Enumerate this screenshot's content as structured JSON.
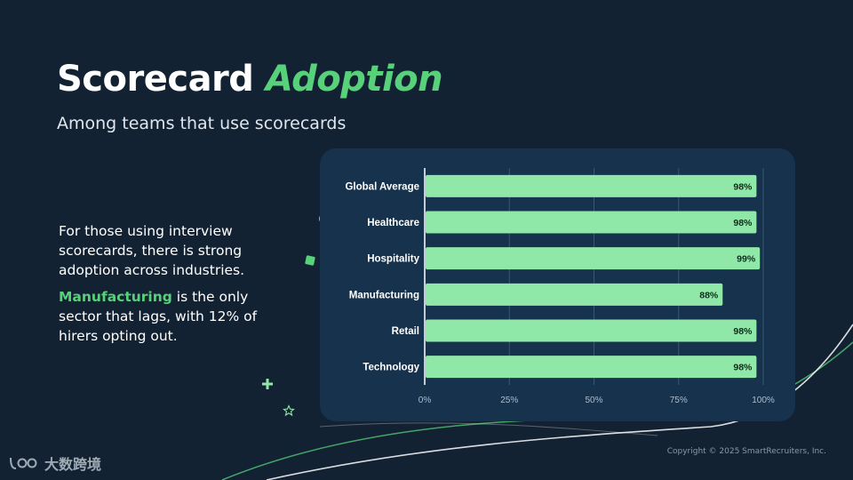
{
  "title": {
    "main": "Scorecard",
    "accent": "Adoption"
  },
  "subtitle": "Among teams that use scorecards",
  "body": {
    "paragraph1": "For those using interview scorecards, there is strong adoption across industries.",
    "paragraph2_highlight": "Manufacturing",
    "paragraph2_rest": " is the only sector that lags, with 12% of hirers opting out."
  },
  "footer": {
    "copyright": "Copyright © 2025 SmartRecruiters, Inc."
  },
  "watermark": {
    "text": "大数跨境"
  },
  "colors": {
    "background": "#132233",
    "card": "#16324d",
    "bar": "#8fe8a8",
    "accent": "#57d17a"
  },
  "chart_data": {
    "type": "bar",
    "orientation": "horizontal",
    "categories": [
      "Global Average",
      "Healthcare",
      "Hospitality",
      "Manufacturing",
      "Retail",
      "Technology"
    ],
    "values": [
      98,
      98,
      99,
      88,
      98,
      98
    ],
    "data_labels": [
      "98%",
      "98%",
      "99%",
      "88%",
      "98%",
      "98%"
    ],
    "xlim": [
      0,
      100
    ],
    "xticks": [
      "0%",
      "25%",
      "50%",
      "75%",
      "100%"
    ],
    "title": "",
    "xlabel": "",
    "ylabel": "",
    "grid": true
  }
}
